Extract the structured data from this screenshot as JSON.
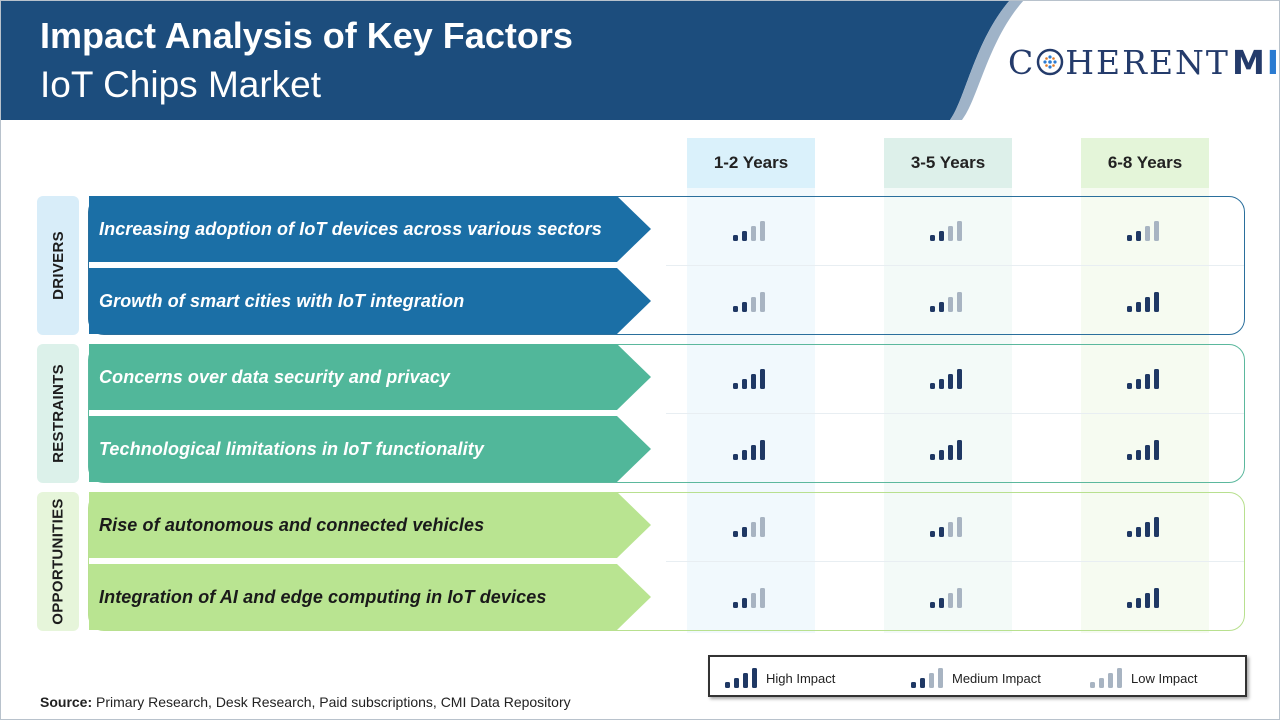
{
  "header": {
    "title": "Impact Analysis of Key Factors",
    "subtitle": "IoT Chips Market",
    "logo_text": "COHERENTMI",
    "logo_part1": "C",
    "logo_part2": "HERENT",
    "logo_part3": "M",
    "logo_part4": "I"
  },
  "colors": {
    "header_bg": "#1c4d7d",
    "drivers": "#1b6fa6",
    "restraints": "#51b79a",
    "opportunities": "#b9e491",
    "bar_high": "#1f3864",
    "bar_low": "#a8b4c2"
  },
  "chart_data": {
    "type": "table",
    "columns": [
      "1-2 Years",
      "3-5 Years",
      "6-8 Years"
    ],
    "groups": [
      {
        "name": "DRIVERS",
        "factors": [
          {
            "label": "Increasing adoption of IoT devices across various sectors",
            "impact": [
              "Medium",
              "Medium",
              "Medium"
            ]
          },
          {
            "label": "Growth of smart cities with IoT integration",
            "impact": [
              "Medium",
              "Medium",
              "High"
            ]
          }
        ]
      },
      {
        "name": "RESTRAINTS",
        "factors": [
          {
            "label": "Concerns over data security and privacy",
            "impact": [
              "High",
              "High",
              "High"
            ]
          },
          {
            "label": "Technological limitations in IoT functionality",
            "impact": [
              "High",
              "High",
              "High"
            ]
          }
        ]
      },
      {
        "name": "OPPORTUNITIES",
        "factors": [
          {
            "label": "Rise of autonomous and connected vehicles",
            "impact": [
              "Medium",
              "Medium",
              "High"
            ]
          },
          {
            "label": "Integration of AI and edge computing in IoT devices",
            "impact": [
              "Medium",
              "Medium",
              "High"
            ]
          }
        ]
      }
    ],
    "legend": [
      "High Impact",
      "Medium Impact",
      "Low Impact"
    ]
  },
  "source": {
    "label": "Source:",
    "text": "Primary Research, Desk Research, Paid subscriptions, CMI Data Repository"
  }
}
